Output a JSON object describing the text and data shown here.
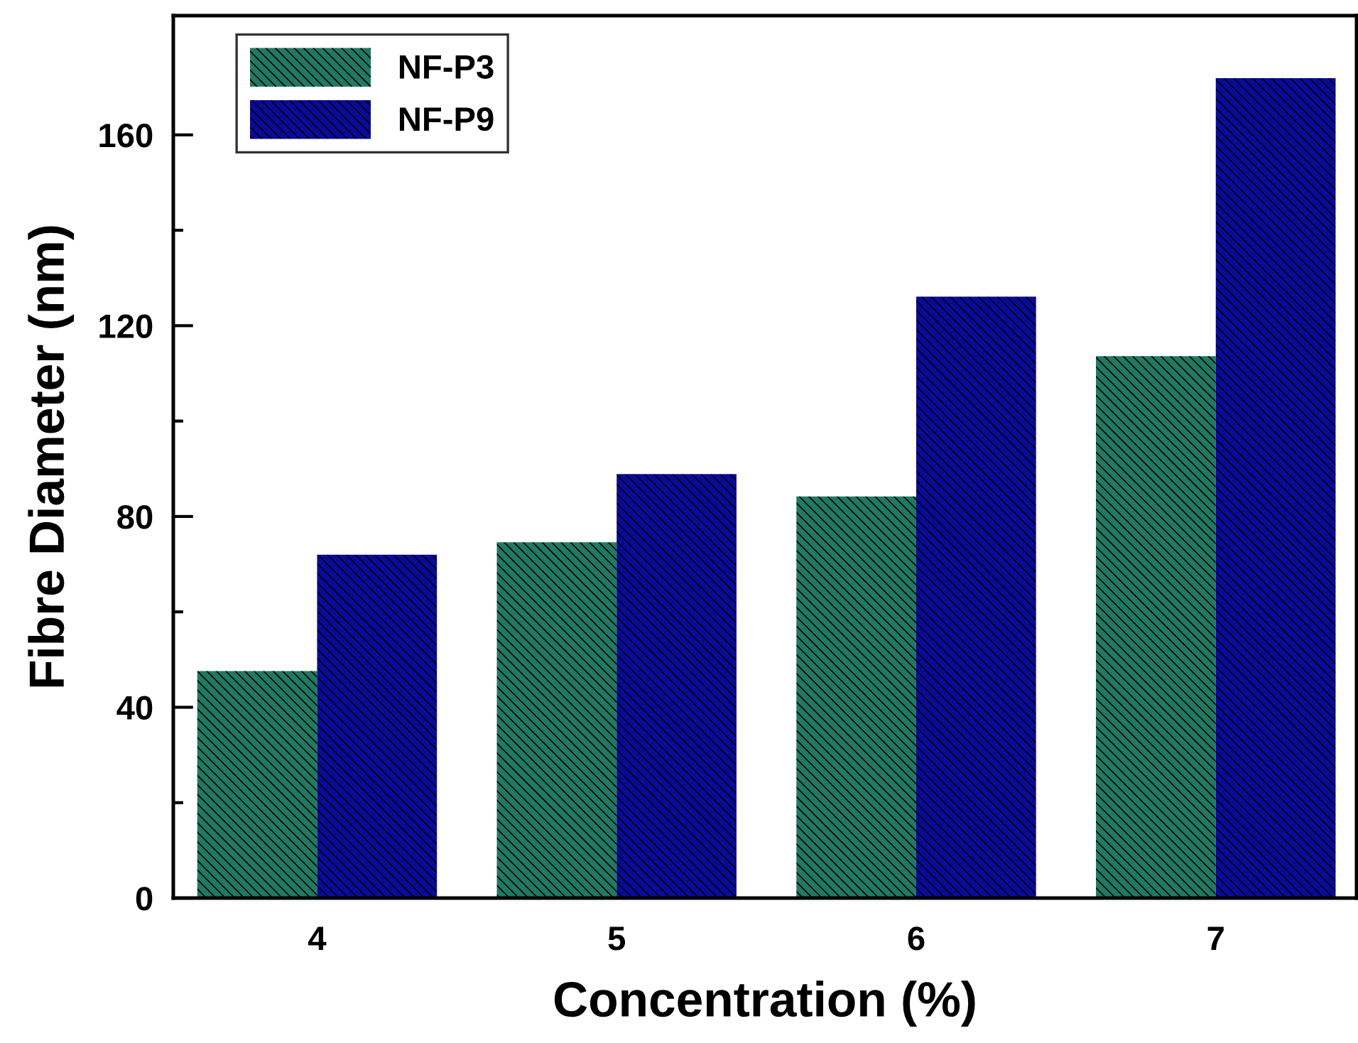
{
  "chart_data": {
    "type": "bar",
    "xlabel": "Concentration (%)",
    "ylabel": "Fibre Diameter (nm)",
    "categories": [
      "4",
      "5",
      "6",
      "7"
    ],
    "series": [
      {
        "name": "NF-P3",
        "color": "#1f7a62",
        "values": [
          47.6,
          74.6,
          84.2,
          113.6
        ]
      },
      {
        "name": "NF-P9",
        "color": "#0a0a9a",
        "values": [
          72,
          88.9,
          126.1,
          171.9
        ]
      }
    ],
    "ylim": [
      0,
      185
    ],
    "yticks": [
      0,
      40,
      80,
      120,
      160
    ],
    "grid": false,
    "legend": "top left"
  }
}
